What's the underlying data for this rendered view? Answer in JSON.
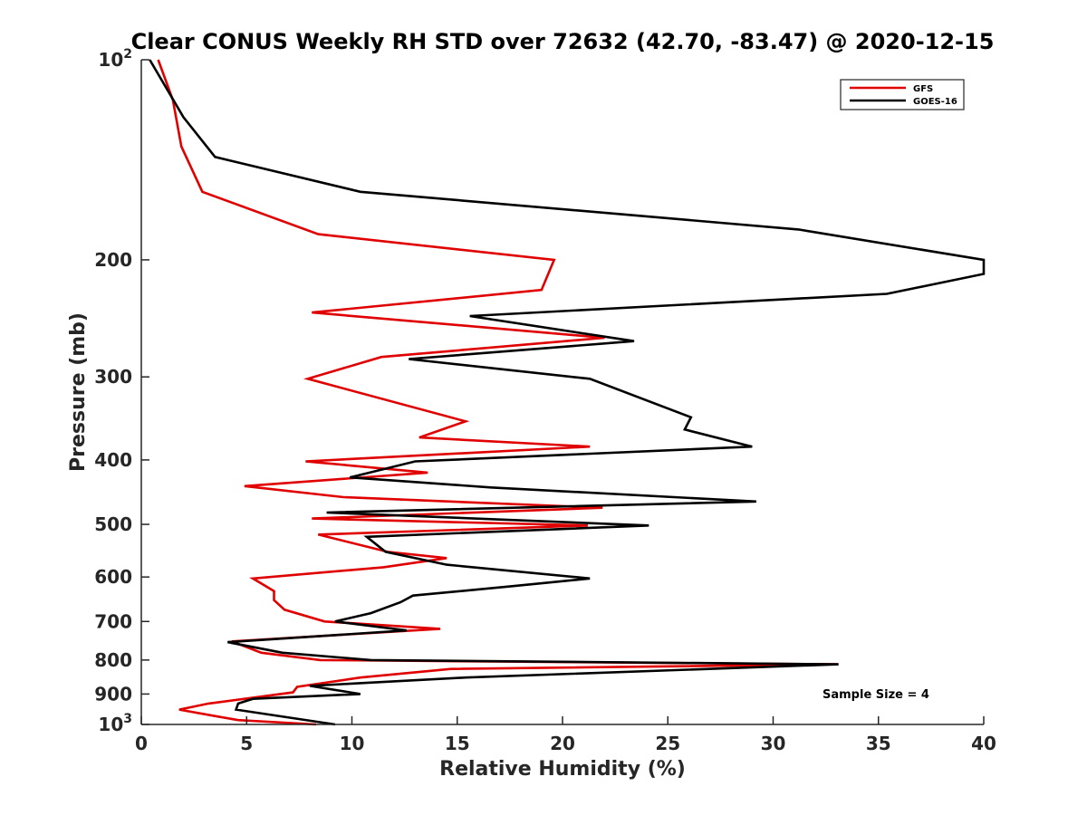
{
  "chart_data": {
    "type": "line",
    "title": "Clear CONUS Weekly RH STD over 72632 (42.70, -83.47) @ 2020-12-15",
    "xlabel": "Relative Humidity (%)",
    "ylabel": "Pressure (mb)",
    "xlim": [
      0,
      40
    ],
    "ylim": [
      100,
      1000
    ],
    "y_scale": "log",
    "y_reversed": true,
    "grid": false,
    "legend_position": "top-right",
    "x_ticks": [
      "0",
      "5",
      "10",
      "15",
      "20",
      "25",
      "30",
      "35",
      "40"
    ],
    "y_ticks": [
      {
        "value": 100,
        "base": "10",
        "exp": "2"
      },
      {
        "value": 200,
        "label": "200"
      },
      {
        "value": 300,
        "label": "300"
      },
      {
        "value": 400,
        "label": "400"
      },
      {
        "value": 500,
        "label": "500"
      },
      {
        "value": 600,
        "label": "600"
      },
      {
        "value": 700,
        "label": "700"
      },
      {
        "value": 800,
        "label": "800"
      },
      {
        "value": 900,
        "label": "900"
      },
      {
        "value": 1000,
        "base": "10",
        "exp": "3"
      }
    ],
    "annotation": "Sample Size = 4",
    "series": [
      {
        "name": "GFS",
        "color": "#e00000",
        "points": [
          [
            0.8,
            100
          ],
          [
            1.5,
            115
          ],
          [
            1.9,
            135
          ],
          [
            2.9,
            158
          ],
          [
            8.4,
            183
          ],
          [
            19.6,
            200
          ],
          [
            19.0,
            222
          ],
          [
            8.1,
            240
          ],
          [
            22.0,
            262
          ],
          [
            11.4,
            280
          ],
          [
            7.9,
            302
          ],
          [
            15.4,
            350
          ],
          [
            13.2,
            370
          ],
          [
            21.3,
            382
          ],
          [
            7.8,
            402
          ],
          [
            13.6,
            418
          ],
          [
            4.9,
            438
          ],
          [
            9.6,
            455
          ],
          [
            21.9,
            472
          ],
          [
            8.1,
            490
          ],
          [
            21.2,
            502
          ],
          [
            8.4,
            518
          ],
          [
            11.7,
            550
          ],
          [
            14.5,
            562
          ],
          [
            11.5,
            580
          ],
          [
            5.3,
            603
          ],
          [
            6.3,
            630
          ],
          [
            6.3,
            650
          ],
          [
            6.8,
            672
          ],
          [
            8.7,
            700
          ],
          [
            14.2,
            718
          ],
          [
            4.3,
            750
          ],
          [
            5.7,
            780
          ],
          [
            8.5,
            800
          ],
          [
            33.1,
            812
          ],
          [
            14.7,
            825
          ],
          [
            10.4,
            850
          ],
          [
            7.4,
            878
          ],
          [
            7.2,
            895
          ],
          [
            3.2,
            930
          ],
          [
            1.8,
            950
          ],
          [
            3.4,
            970
          ],
          [
            4.6,
            985
          ],
          [
            8.3,
            1000
          ]
        ]
      },
      {
        "name": "GOES-16",
        "color": "#000000",
        "points": [
          [
            0.4,
            100
          ],
          [
            2.0,
            122
          ],
          [
            3.5,
            140
          ],
          [
            10.4,
            158
          ],
          [
            31.2,
            180
          ],
          [
            40.0,
            200
          ],
          [
            40.0,
            210
          ],
          [
            35.4,
            225
          ],
          [
            15.6,
            243
          ],
          [
            23.4,
            265
          ],
          [
            12.7,
            282
          ],
          [
            21.3,
            302
          ],
          [
            26.1,
            345
          ],
          [
            25.8,
            360
          ],
          [
            29.0,
            382
          ],
          [
            13.0,
            402
          ],
          [
            9.9,
            425
          ],
          [
            16.6,
            440
          ],
          [
            29.2,
            462
          ],
          [
            8.8,
            480
          ],
          [
            24.1,
            502
          ],
          [
            10.7,
            522
          ],
          [
            11.6,
            550
          ],
          [
            14.5,
            575
          ],
          [
            21.3,
            603
          ],
          [
            17.5,
            620
          ],
          [
            12.9,
            640
          ],
          [
            12.3,
            655
          ],
          [
            10.9,
            680
          ],
          [
            9.2,
            700
          ],
          [
            12.6,
            722
          ],
          [
            4.1,
            752
          ],
          [
            6.7,
            780
          ],
          [
            10.9,
            800
          ],
          [
            33.1,
            812
          ],
          [
            15.4,
            850
          ],
          [
            8.0,
            875
          ],
          [
            10.4,
            900
          ],
          [
            5.3,
            915
          ],
          [
            4.6,
            930
          ],
          [
            4.5,
            950
          ],
          [
            9.2,
            1000
          ]
        ]
      }
    ]
  }
}
